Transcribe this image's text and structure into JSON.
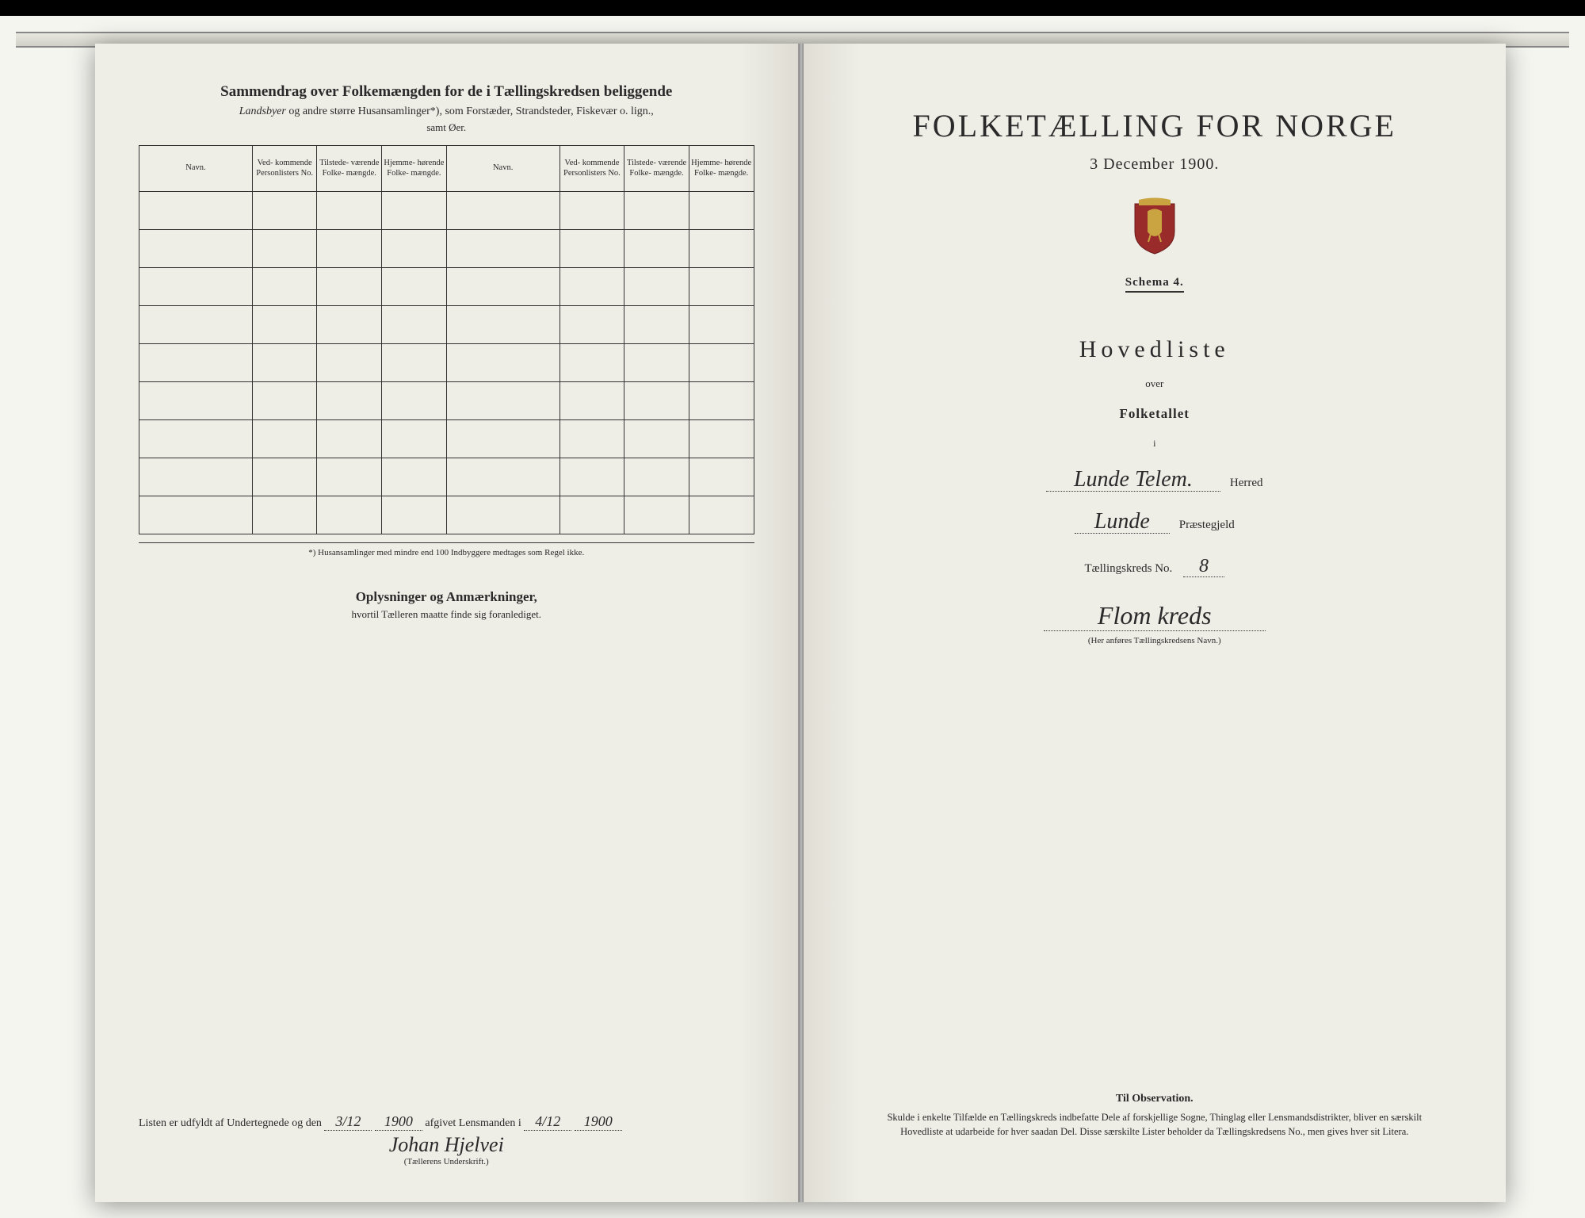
{
  "left": {
    "heading": "Sammendrag over Folkemængden for de i Tællingskredsen beliggende",
    "subheading_italic": "Landsbyer",
    "subheading_rest": " og andre større Husansamlinger*), som Forstæder, Strandsteder, Fiskevær o. lign.,",
    "samt": "samt Øer.",
    "columns": {
      "navn": "Navn.",
      "vedkommende": "Ved-\nkommende\nPersonlisters\nNo.",
      "tilstede": "Tilstede-\nværende\nFolke-\nmængde.",
      "hjemme": "Hjemme-\nhørende\nFolke-\nmængde."
    },
    "footnote": "*) Husansamlinger med mindre end 100 Indbyggere medtages som Regel ikke.",
    "oplysninger_heading": "Oplysninger og Anmærkninger,",
    "oplysninger_sub": "hvortil Tælleren maatte finde sig foranlediget.",
    "listen_prefix": "Listen er udfyldt af Undertegnede og den",
    "date1": "3/12",
    "year1": "1900",
    "afgivet": "afgivet Lensmanden i",
    "date2": "4/12",
    "year2": "1900",
    "signature": "Johan Hjelvei",
    "sig_label": "(Tællerens Underskrift.)"
  },
  "right": {
    "main_title": "FOLKETÆLLING FOR NORGE",
    "date": "3 December 1900.",
    "schema": "Schema 4.",
    "hovedliste": "Hovedliste",
    "over": "over",
    "folketallet": "Folketallet",
    "i": "i",
    "herred_value": "Lunde Telem.",
    "herred_label": "Herred",
    "praestegjeld_value": "Lunde",
    "praestegjeld_label": "Præstegjeld",
    "kreds_label": "Tællingskreds No.",
    "kreds_no": "8",
    "kreds_name": "Flom kreds",
    "anfores": "(Her anføres Tællingskredsens Navn.)",
    "obs_heading": "Til Observation.",
    "obs_body": "Skulde i enkelte Tilfælde en Tællingskreds indbefatte Dele af forskjellige Sogne, Thinglag eller Lensmandsdistrikter, bliver en særskilt Hovedliste at udarbeide for hver saadan Del. Disse særskilte Lister beholder da Tællingskredsens No., men gives hver sit Litera."
  },
  "colors": {
    "paper": "#eeede6",
    "ink": "#2a2a2a",
    "background": "#1a1a1a",
    "crest_red": "#9a2b2b",
    "crest_gold": "#c9a441"
  },
  "table_blank_rows": 9
}
